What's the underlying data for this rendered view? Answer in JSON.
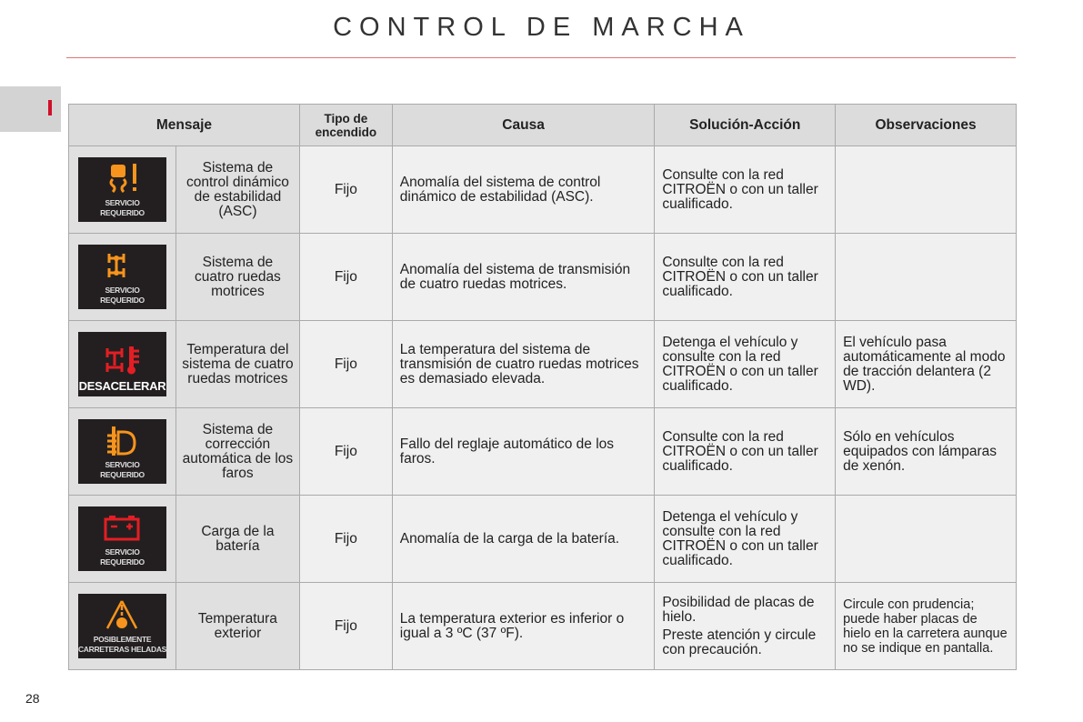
{
  "page": {
    "title": "CONTROL DE MARCHA",
    "section_tab": "I",
    "page_number": "28"
  },
  "table": {
    "headers": [
      "Mensaje",
      "Tipo de encendido",
      "Causa",
      "Solución-Acción",
      "Observaciones"
    ],
    "rows": [
      {
        "icon": "stability-control-warning-icon",
        "icon_color": "#f7941d",
        "display_lines": [
          "SERVICIO",
          "REQUERIDO"
        ],
        "mensaje": "Sistema de control dinámico de estabilidad (ASC)",
        "tipo": "Fijo",
        "causa": "Anomalía del sistema de control dinámico de estabilidad (ASC).",
        "solucion": [
          "Consulte con la red CITROËN o con un taller cualificado."
        ],
        "observaciones": ""
      },
      {
        "icon": "four-wheel-drive-icon",
        "icon_color": "#f7941d",
        "display_lines": [
          "SERVICIO",
          "REQUERIDO"
        ],
        "mensaje": "Sistema de cuatro ruedas motrices",
        "tipo": "Fijo",
        "causa": "Anomalía del sistema de transmisión de cuatro ruedas motrices.",
        "solucion": [
          "Consulte con la red CITROËN o con un taller cualificado."
        ],
        "observaciones": ""
      },
      {
        "icon": "four-wheel-drive-temperature-icon",
        "icon_color": "#e31e24",
        "display_lines": [
          "DESACELERAR"
        ],
        "mensaje": "Temperatura del sistema de cuatro ruedas motrices",
        "tipo": "Fijo",
        "causa": "La temperatura del sistema de transmisión de cuatro ruedas motrices es demasiado elevada.",
        "solucion": [
          "Detenga el vehículo y consulte con la red CITROËN o con un taller cualificado."
        ],
        "observaciones": "El vehículo pasa automáticamente al modo de tracción delantera (2 WD)."
      },
      {
        "icon": "headlamp-leveling-icon",
        "icon_color": "#f7941d",
        "display_lines": [
          "SERVICIO",
          "REQUERIDO"
        ],
        "mensaje": "Sistema de corrección automática de los faros",
        "tipo": "Fijo",
        "causa": "Fallo del reglaje automático de los faros.",
        "solucion": [
          "Consulte con la red CITROËN o con un taller cualificado."
        ],
        "observaciones": "Sólo en vehículos equipados con lámparas de xenón."
      },
      {
        "icon": "battery-icon",
        "icon_color": "#e31e24",
        "display_lines": [
          "SERVICIO",
          "REQUERIDO"
        ],
        "mensaje": "Carga de la batería",
        "tipo": "Fijo",
        "causa": "Anomalía de la carga de la batería.",
        "solucion": [
          "Detenga el vehículo y consulte con la red CITROËN o con un taller cualificado."
        ],
        "observaciones": ""
      },
      {
        "icon": "icy-road-icon",
        "icon_color": "#f7941d",
        "display_lines": [
          "POSIBLEMENTE",
          "CARRETERAS HELADAS"
        ],
        "mensaje": "Temperatura exterior",
        "tipo": "Fijo",
        "causa": "La temperatura exterior es inferior o igual a 3 ºC (37 ºF).",
        "solucion": [
          "Posibilidad de placas de hielo.",
          "Preste atención y circule con precaución."
        ],
        "observaciones": "Circule con prudencia; puede haber placas de hielo en la carretera aunque no se indique en pantalla."
      }
    ]
  }
}
